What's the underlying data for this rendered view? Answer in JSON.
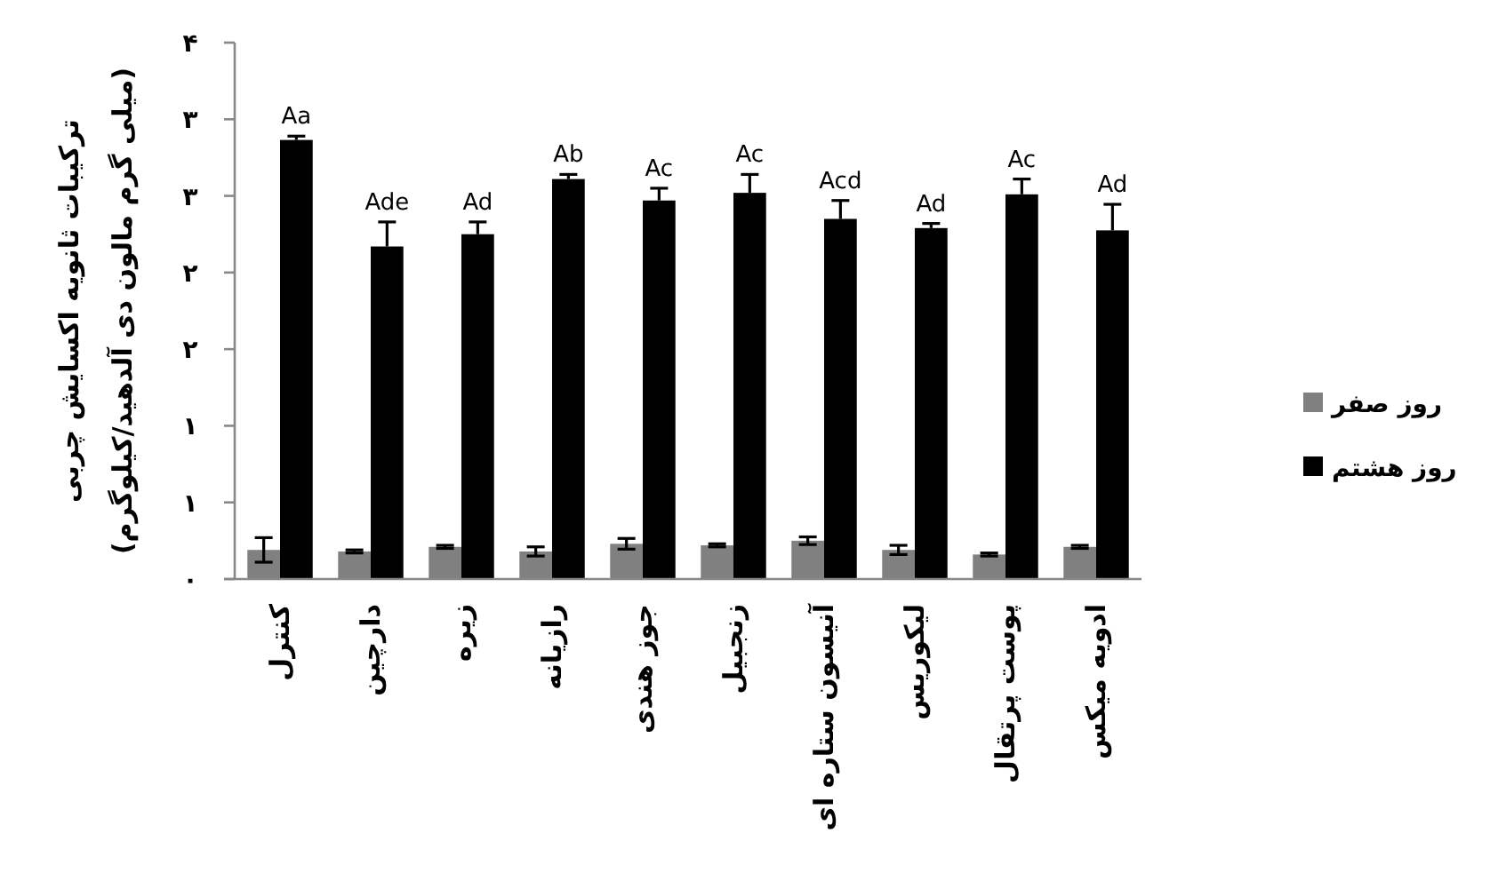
{
  "chart_data": {
    "type": "bar",
    "ylabel": "ترکیبات ثانویه اکسایش چربی\n(میلی گرم مالون دی آلدهید/کیلوگرم)",
    "categories": [
      "کنترل",
      "دارچین",
      "زیره",
      "رازیانه",
      "جوز هندی",
      "زنجبیل",
      "آنیسون ستاره ای",
      "لیکوریس",
      "پوست پرتقال",
      "ادویه میکس"
    ],
    "series": [
      {
        "name": "روز صفر",
        "color": "#808080",
        "values": [
          0.19,
          0.18,
          0.21,
          0.18,
          0.23,
          0.22,
          0.25,
          0.19,
          0.16,
          0.21
        ],
        "errors": [
          0.08,
          0.01,
          0.01,
          0.03,
          0.035,
          0.01,
          0.025,
          0.03,
          0.01,
          0.01
        ]
      },
      {
        "name": "روز هشتم",
        "color": "#000000",
        "values": [
          2.865,
          2.17,
          2.25,
          2.61,
          2.47,
          2.52,
          2.35,
          2.29,
          2.51,
          2.275
        ],
        "errors": [
          [
            2.865,
            2.89
          ],
          [
            2.17,
            2.33
          ],
          [
            2.25,
            2.33
          ],
          [
            2.61,
            2.64
          ],
          [
            2.47,
            2.55
          ],
          [
            2.52,
            2.64
          ],
          [
            2.35,
            2.47
          ],
          [
            2.29,
            2.32
          ],
          [
            2.51,
            2.61
          ],
          [
            2.275,
            2.445
          ]
        ]
      }
    ],
    "ylim": [
      0,
      3.5
    ],
    "yticks": [
      {
        "value": 0,
        "label": "۰"
      },
      {
        "value": 0.5,
        "label": "۱"
      },
      {
        "value": 1,
        "label": "۱"
      },
      {
        "value": 1.5,
        "label": "۲"
      },
      {
        "value": 2,
        "label": "۲"
      },
      {
        "value": 2.5,
        "label": "۳"
      },
      {
        "value": 3,
        "label": "۳"
      },
      {
        "value": 3.5,
        "label": "۴"
      }
    ],
    "annotations": [
      {
        "text": "Aa",
        "x": "کنترل",
        "y": 2.89
      },
      {
        "text": "Ade",
        "x": "دارچین",
        "y": 2.33
      },
      {
        "text": "Ad",
        "x": "زیره",
        "y": 2.33
      },
      {
        "text": "Ab",
        "x": "رازیانه",
        "y": 2.64
      },
      {
        "text": "Ac",
        "x": "جوز هندی",
        "y": 2.55
      },
      {
        "text": "Ac",
        "x": "زنجبیل",
        "y": 2.64
      },
      {
        "text": "Acd",
        "x": "آنیسون ستاره ای",
        "y": 2.47
      },
      {
        "text": "Ad",
        "x": "لیکوریس",
        "y": 2.32
      },
      {
        "text": "Ac",
        "x": "پوست پرتقال",
        "y": 2.61
      },
      {
        "text": "Ad",
        "x": "ادویه میکس",
        "y": 2.445
      }
    ],
    "legend": "right",
    "grid": false
  }
}
